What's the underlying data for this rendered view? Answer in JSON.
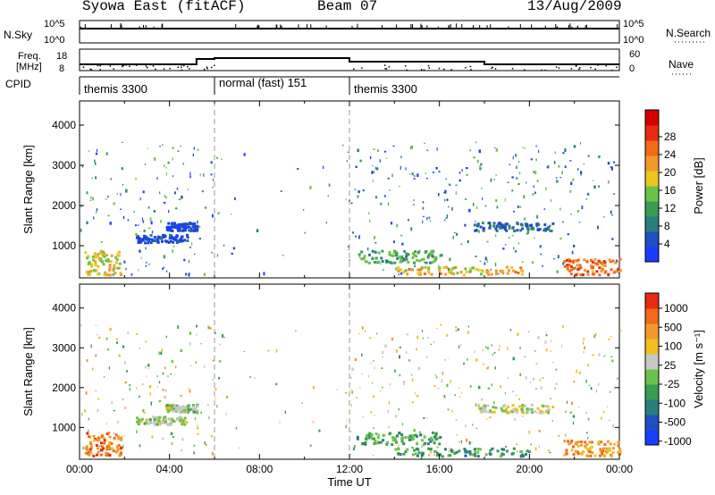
{
  "header": {
    "station": "Syowa East (fitACF)",
    "beam": "Beam 07",
    "date": "13/Aug/2009"
  },
  "nsky_panel": {
    "label": "N.Sky",
    "right_label": "N.Search",
    "ticks_left": [
      "10^5",
      "10^0"
    ],
    "ticks_right": [
      "10^5",
      "10^0"
    ]
  },
  "freq_panel": {
    "label_line1": "Freq.",
    "label_line2": "[MHz]",
    "right_label": "Nave",
    "ticks_left": [
      "18",
      "8"
    ],
    "ticks_right": [
      "60",
      "0"
    ]
  },
  "cpid_panel": {
    "label": "CPID",
    "segments": [
      {
        "label": "themis 3300",
        "start_h": 0,
        "end_h": 6
      },
      {
        "label": "normal (fast) 151",
        "start_h": 6,
        "end_h": 12
      },
      {
        "label": "themis 3300",
        "start_h": 12,
        "end_h": 24
      }
    ]
  },
  "chart_data": [
    {
      "type": "heatmap",
      "quantity": "power",
      "ylabel": "Slant Range [km]",
      "yticks": [
        1000,
        2000,
        3000,
        4000
      ],
      "ylim": [
        200,
        4600
      ],
      "xlim": [
        0,
        24
      ],
      "colorbar": {
        "label": "Power [dB]",
        "ticks": [
          "4",
          "8",
          "12",
          "16",
          "20",
          "24",
          "28"
        ],
        "colors": [
          "#1a3cff",
          "#1f4fc0",
          "#2a7d7d",
          "#3a9c52",
          "#6bc24a",
          "#e8c81c",
          "#f09a2a",
          "#f06a1a",
          "#e82a10",
          "#d40000"
        ]
      },
      "echo_bands": [
        {
          "start_h": 0.2,
          "end_h": 1.8,
          "r1": 300,
          "r2": 900,
          "level": 0.55
        },
        {
          "start_h": 2.5,
          "end_h": 4.8,
          "r1": 1100,
          "r2": 1300,
          "level": 0.05
        },
        {
          "start_h": 3.8,
          "end_h": 5.2,
          "r1": 1400,
          "r2": 1600,
          "level": 0.05
        },
        {
          "start_h": 12.3,
          "end_h": 16.0,
          "r1": 600,
          "r2": 900,
          "level": 0.35
        },
        {
          "start_h": 14.0,
          "end_h": 20.0,
          "r1": 300,
          "r2": 500,
          "level": 0.6
        },
        {
          "start_h": 17.5,
          "end_h": 21.0,
          "r1": 1400,
          "r2": 1600,
          "level": 0.15
        },
        {
          "start_h": 21.5,
          "end_h": 24.0,
          "r1": 300,
          "r2": 700,
          "level": 0.75
        }
      ]
    },
    {
      "type": "heatmap",
      "quantity": "velocity",
      "ylabel": "Slant Range [km]",
      "yticks": [
        1000,
        2000,
        3000,
        4000
      ],
      "ylim": [
        200,
        4600
      ],
      "xlim": [
        0,
        24
      ],
      "xticks": [
        "00:00",
        "04:00",
        "08:00",
        "12:00",
        "16:00",
        "20:00",
        "00:00"
      ],
      "xlabel": "Time UT",
      "colorbar": {
        "label": "Velocity [m s⁻¹]",
        "ticks": [
          "1000",
          "500",
          "100",
          "25",
          "-25",
          "-100",
          "-500",
          "-1000"
        ],
        "colors": [
          "#1a3cff",
          "#1f4fc0",
          "#2a7d7d",
          "#3a9c52",
          "#6bc24a",
          "#c8c8c8",
          "#f0c020",
          "#f09a2a",
          "#f06a1a",
          "#e82a10"
        ]
      },
      "echo_bands": [
        {
          "start_h": 0.2,
          "end_h": 1.8,
          "r1": 300,
          "r2": 900,
          "level": 0.85
        },
        {
          "start_h": 2.5,
          "end_h": 4.8,
          "r1": 1100,
          "r2": 1300,
          "level": 0.5
        },
        {
          "start_h": 3.8,
          "end_h": 5.2,
          "r1": 1400,
          "r2": 1600,
          "level": 0.5
        },
        {
          "start_h": 12.3,
          "end_h": 16.0,
          "r1": 600,
          "r2": 900,
          "level": 0.35
        },
        {
          "start_h": 14.0,
          "end_h": 20.0,
          "r1": 300,
          "r2": 500,
          "level": 0.3
        },
        {
          "start_h": 17.5,
          "end_h": 21.0,
          "r1": 1400,
          "r2": 1600,
          "level": 0.55
        },
        {
          "start_h": 21.5,
          "end_h": 24.0,
          "r1": 300,
          "r2": 700,
          "level": 0.8
        }
      ]
    }
  ]
}
